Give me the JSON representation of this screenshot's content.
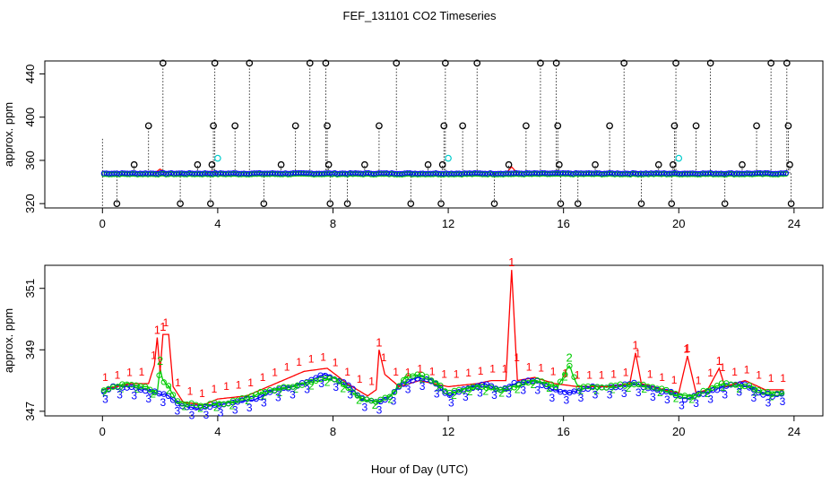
{
  "chart_data": {
    "type": "timeseries",
    "title": "FEF_131101  CO2 Timeseries",
    "xlabel": "Hour of Day (UTC)",
    "colors": {
      "black": "#000000",
      "red": "#ff0000",
      "green": "#00cc00",
      "blue": "#0000ff",
      "cyan": "#00cccc"
    },
    "panels": [
      {
        "name": "top",
        "ylabel": "approx. ppm",
        "xlim": [
          -2,
          25
        ],
        "ylim": [
          316,
          452
        ],
        "xticks": [
          0,
          4,
          8,
          12,
          16,
          20,
          24
        ],
        "yticks": [
          320,
          360,
          400,
          440
        ],
        "baseline": 348,
        "black_circles": [
          [
            0.5,
            320
          ],
          [
            1.1,
            356
          ],
          [
            1.6,
            392
          ],
          [
            2.1,
            450
          ],
          [
            2.7,
            320
          ],
          [
            3.3,
            356
          ],
          [
            3.75,
            320
          ],
          [
            3.8,
            356
          ],
          [
            3.85,
            392
          ],
          [
            3.9,
            450
          ],
          [
            4.6,
            392
          ],
          [
            5.1,
            450
          ],
          [
            5.6,
            320
          ],
          [
            6.2,
            356
          ],
          [
            6.7,
            392
          ],
          [
            7.2,
            450
          ],
          [
            7.75,
            450
          ],
          [
            7.8,
            392
          ],
          [
            7.85,
            356
          ],
          [
            7.9,
            320
          ],
          [
            8.5,
            320
          ],
          [
            9.1,
            356
          ],
          [
            9.6,
            392
          ],
          [
            10.2,
            450
          ],
          [
            10.7,
            320
          ],
          [
            11.3,
            356
          ],
          [
            11.75,
            320
          ],
          [
            11.8,
            356
          ],
          [
            11.85,
            392
          ],
          [
            11.9,
            450
          ],
          [
            12.5,
            392
          ],
          [
            13.0,
            450
          ],
          [
            13.6,
            320
          ],
          [
            14.1,
            356
          ],
          [
            14.7,
            392
          ],
          [
            15.2,
            450
          ],
          [
            15.75,
            450
          ],
          [
            15.8,
            392
          ],
          [
            15.85,
            356
          ],
          [
            15.9,
            320
          ],
          [
            16.5,
            320
          ],
          [
            17.1,
            356
          ],
          [
            17.6,
            392
          ],
          [
            18.1,
            450
          ],
          [
            18.7,
            320
          ],
          [
            19.3,
            356
          ],
          [
            19.75,
            320
          ],
          [
            19.8,
            356
          ],
          [
            19.85,
            392
          ],
          [
            19.9,
            450
          ],
          [
            20.6,
            392
          ],
          [
            21.1,
            450
          ],
          [
            21.6,
            320
          ],
          [
            22.2,
            356
          ],
          [
            22.7,
            392
          ],
          [
            23.2,
            450
          ],
          [
            23.75,
            450
          ],
          [
            23.8,
            392
          ],
          [
            23.85,
            356
          ],
          [
            23.9,
            320
          ]
        ],
        "cyan_points": [
          [
            4.0,
            362
          ],
          [
            12.0,
            362
          ],
          [
            20.0,
            362
          ]
        ],
        "red_bumps": [
          [
            2.0,
            352
          ],
          [
            3.8,
            350
          ],
          [
            9.6,
            350
          ],
          [
            14.2,
            354
          ],
          [
            18.5,
            350
          ],
          [
            20.3,
            350
          ]
        ]
      },
      {
        "name": "bottom",
        "ylabel": "approx. ppm",
        "xlim": [
          -2,
          25
        ],
        "ylim": [
          346.85,
          351.75
        ],
        "xticks": [
          0,
          4,
          8,
          12,
          16,
          20,
          24
        ],
        "yticks": [
          347,
          349,
          351
        ],
        "series": [
          {
            "name": "1",
            "color": "#ff0000",
            "knots": [
              [
                0,
                347.7
              ],
              [
                0.5,
                347.8
              ],
              [
                1,
                347.9
              ],
              [
                1.6,
                347.9
              ],
              [
                1.8,
                348.5
              ],
              [
                1.9,
                349.4
              ],
              [
                2.0,
                348.3
              ],
              [
                2.1,
                349.5
              ],
              [
                2.3,
                349.5
              ],
              [
                2.45,
                347.8
              ],
              [
                2.8,
                347.3
              ],
              [
                3.5,
                347.2
              ],
              [
                4,
                347.4
              ],
              [
                5,
                347.5
              ],
              [
                6,
                347.9
              ],
              [
                7,
                348.3
              ],
              [
                7.8,
                348.4
              ],
              [
                8.5,
                347.9
              ],
              [
                9.2,
                347.5
              ],
              [
                9.5,
                347.7
              ],
              [
                9.6,
                349.0
              ],
              [
                9.8,
                348.2
              ],
              [
                10.3,
                347.8
              ],
              [
                11,
                348.0
              ],
              [
                11.5,
                347.9
              ],
              [
                12,
                347.8
              ],
              [
                13,
                347.9
              ],
              [
                13.5,
                348.0
              ],
              [
                14.0,
                348.0
              ],
              [
                14.2,
                351.6
              ],
              [
                14.4,
                348.0
              ],
              [
                15,
                348.1
              ],
              [
                15.7,
                347.9
              ],
              [
                16.5,
                347.8
              ],
              [
                17.5,
                347.8
              ],
              [
                18.3,
                347.9
              ],
              [
                18.5,
                348.9
              ],
              [
                18.7,
                347.9
              ],
              [
                19.5,
                347.7
              ],
              [
                20.0,
                347.6
              ],
              [
                20.3,
                348.8
              ],
              [
                20.6,
                347.6
              ],
              [
                21.0,
                347.7
              ],
              [
                21.4,
                348.4
              ],
              [
                21.6,
                347.8
              ],
              [
                22.3,
                348.0
              ],
              [
                23,
                347.7
              ],
              [
                23.7,
                347.7
              ]
            ]
          },
          {
            "name": "2",
            "color": "#00cc00",
            "knots": [
              [
                0,
                347.7
              ],
              [
                0.8,
                347.9
              ],
              [
                1.5,
                347.8
              ],
              [
                1.9,
                347.6
              ],
              [
                2.0,
                348.4
              ],
              [
                2.1,
                348.0
              ],
              [
                2.3,
                347.8
              ],
              [
                2.6,
                347.3
              ],
              [
                3.5,
                347.2
              ],
              [
                4.5,
                347.3
              ],
              [
                5.5,
                347.6
              ],
              [
                6.5,
                347.8
              ],
              [
                7.5,
                348.0
              ],
              [
                8,
                348.1
              ],
              [
                9,
                347.4
              ],
              [
                9.5,
                347.3
              ],
              [
                10,
                347.5
              ],
              [
                10.5,
                348.1
              ],
              [
                11,
                348.2
              ],
              [
                11.5,
                348.0
              ],
              [
                12,
                347.6
              ],
              [
                13,
                347.8
              ],
              [
                14,
                347.7
              ],
              [
                15,
                348.0
              ],
              [
                15.8,
                347.8
              ],
              [
                16.2,
                348.5
              ],
              [
                16.5,
                347.8
              ],
              [
                17.5,
                347.8
              ],
              [
                18.5,
                347.9
              ],
              [
                19.5,
                347.7
              ],
              [
                20.0,
                347.5
              ],
              [
                20.5,
                347.5
              ],
              [
                21.5,
                347.9
              ],
              [
                22.5,
                347.8
              ],
              [
                23,
                347.6
              ],
              [
                23.7,
                347.6
              ]
            ]
          },
          {
            "name": "3",
            "color": "#0000ff",
            "knots": [
              [
                0,
                347.6
              ],
              [
                0.4,
                347.8
              ],
              [
                1,
                347.8
              ],
              [
                1.4,
                347.7
              ],
              [
                1.9,
                347.6
              ],
              [
                2.3,
                347.5
              ],
              [
                2.7,
                347.2
              ],
              [
                3.3,
                347.1
              ],
              [
                4,
                347.2
              ],
              [
                4.6,
                347.3
              ],
              [
                5.3,
                347.4
              ],
              [
                6,
                347.7
              ],
              [
                6.6,
                347.8
              ],
              [
                7.2,
                348.0
              ],
              [
                7.7,
                348.2
              ],
              [
                8,
                348.1
              ],
              [
                8.6,
                347.8
              ],
              [
                9.0,
                347.4
              ],
              [
                9.6,
                347.3
              ],
              [
                10,
                347.5
              ],
              [
                10.4,
                347.9
              ],
              [
                11,
                348.1
              ],
              [
                11.4,
                348.0
              ],
              [
                12,
                347.5
              ],
              [
                12.5,
                347.7
              ],
              [
                13.3,
                347.9
              ],
              [
                13.8,
                347.7
              ],
              [
                14.3,
                347.9
              ],
              [
                15,
                348.0
              ],
              [
                15.6,
                347.7
              ],
              [
                16.2,
                347.6
              ],
              [
                17,
                347.8
              ],
              [
                17.8,
                347.8
              ],
              [
                18.5,
                347.9
              ],
              [
                19.2,
                347.7
              ],
              [
                19.8,
                347.6
              ],
              [
                20.2,
                347.4
              ],
              [
                20.9,
                347.6
              ],
              [
                21.6,
                347.8
              ],
              [
                22.2,
                347.9
              ],
              [
                22.8,
                347.6
              ],
              [
                23.3,
                347.5
              ],
              [
                23.7,
                347.6
              ]
            ]
          }
        ]
      }
    ]
  }
}
